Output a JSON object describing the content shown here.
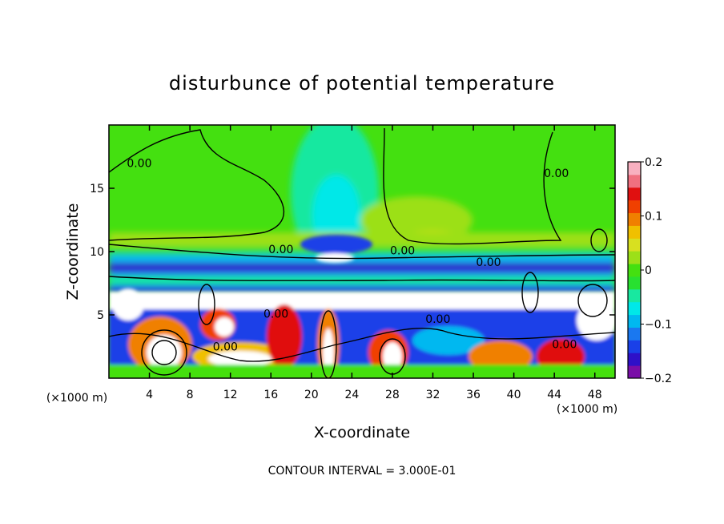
{
  "chart_data": {
    "type": "heatmap",
    "title": "disturbunce of potential temperature",
    "xlabel": "X-coordinate",
    "ylabel": "Z-coordinate",
    "x_unit": "(×1000 m)",
    "x_ticks": [
      4,
      8,
      12,
      16,
      20,
      24,
      28,
      32,
      36,
      40,
      44,
      48
    ],
    "y_ticks": [
      5,
      10,
      15
    ],
    "xlim": [
      0,
      50
    ],
    "ylim": [
      0,
      20
    ],
    "colorbar": {
      "range": [
        -0.2,
        0.2
      ],
      "tick_labels": [
        "0.2",
        "0.1",
        "0",
        "−0.1",
        "−0.2"
      ],
      "tick_values": [
        0.2,
        0.1,
        0,
        -0.1,
        -0.2
      ],
      "colors": [
        "#7a0ea8",
        "#2e10c8",
        "#1a40e8",
        "#1a78f0",
        "#00b8f0",
        "#00e8e8",
        "#18e8a0",
        "#28e030",
        "#44e010",
        "#9ce018",
        "#d8e020",
        "#f0c000",
        "#f08000",
        "#f04000",
        "#e01010",
        "#f07080",
        "#f8b0c0"
      ]
    },
    "contour_labels": [
      {
        "text": "0.00",
        "x": 3.0,
        "z": 16.8
      },
      {
        "text": "0.00",
        "x": 17.0,
        "z": 10.0
      },
      {
        "text": "0.00",
        "x": 29.0,
        "z": 9.9
      },
      {
        "text": "0.00",
        "x": 37.5,
        "z": 9.0
      },
      {
        "text": "0.00",
        "x": 44.2,
        "z": 16.0
      },
      {
        "text": "0.00",
        "x": 16.5,
        "z": 4.9
      },
      {
        "text": "0.00",
        "x": 32.5,
        "z": 4.5
      },
      {
        "text": "0.00",
        "x": 11.5,
        "z": 2.3
      },
      {
        "text": "0.00",
        "x": 45.0,
        "z": 2.5
      }
    ],
    "contour_interval_text": "CONTOUR INTERVAL = 3.000E-01"
  }
}
